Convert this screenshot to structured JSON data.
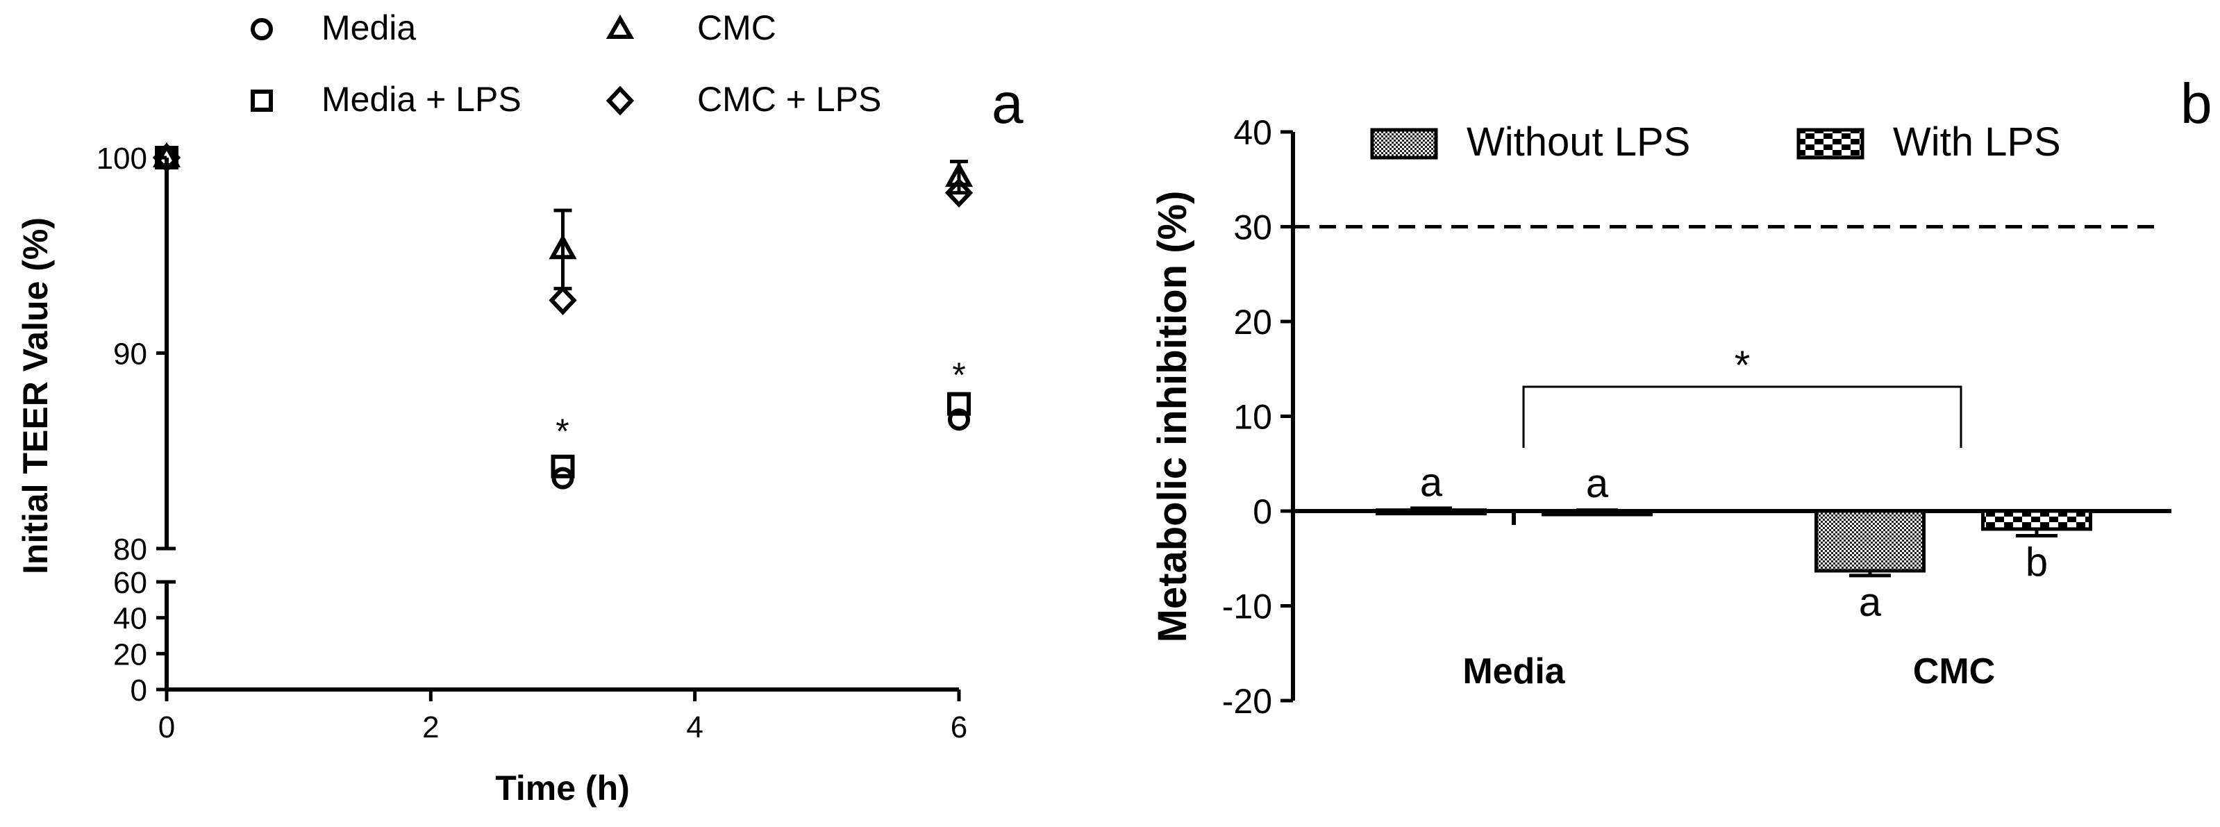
{
  "panel_a": {
    "label": "a",
    "xlabel": "Time (h)",
    "ylabel": "Initial TEER Value (%)",
    "x_ticks": [
      "0",
      "2",
      "4",
      "6"
    ],
    "y_ticks_upper": [
      "80",
      "90",
      "100"
    ],
    "y_ticks_lower": [
      "0",
      "20",
      "40",
      "60"
    ],
    "legend": [
      {
        "marker": "circle",
        "label": "Media"
      },
      {
        "marker": "triangle",
        "label": "CMC"
      },
      {
        "marker": "square",
        "label": "Media + LPS"
      },
      {
        "marker": "diamond",
        "label": "CMC + LPS"
      }
    ],
    "annotations": [
      {
        "text": "*",
        "x": 3,
        "y": 85.5
      },
      {
        "text": "*",
        "x": 6,
        "y": 88.5
      }
    ]
  },
  "panel_b": {
    "label": "b",
    "ylabel": "Metabolic inhibition (%)",
    "y_ticks": [
      "-20",
      "-10",
      "0",
      "10",
      "20",
      "30",
      "40"
    ],
    "groups": [
      "Media",
      "CMC"
    ],
    "legend": [
      {
        "pattern": "fine-checker",
        "label": "Without LPS"
      },
      {
        "pattern": "coarse-checker",
        "label": "With LPS"
      }
    ],
    "bracket_label": "*",
    "threshold": 30
  },
  "chart_data": [
    {
      "type": "scatter",
      "title": "",
      "xlabel": "Time (h)",
      "ylabel": "Initial TEER Value (%)",
      "xlim": [
        0,
        6
      ],
      "ylim_break": {
        "lower": [
          0,
          60
        ],
        "upper": [
          80,
          100
        ]
      },
      "grid": false,
      "legend_position": "top",
      "series": [
        {
          "name": "Media",
          "marker": "circle",
          "x": [
            0,
            3,
            6
          ],
          "y": [
            100,
            83.6,
            86.6
          ]
        },
        {
          "name": "Media + LPS",
          "marker": "square",
          "x": [
            0,
            3,
            6
          ],
          "y": [
            100,
            84.2,
            87.4
          ]
        },
        {
          "name": "CMC",
          "marker": "triangle",
          "x": [
            0,
            3,
            6
          ],
          "y": [
            100,
            95.3,
            99.0
          ],
          "error": [
            0,
            2.0,
            0.8
          ]
        },
        {
          "name": "CMC + LPS",
          "marker": "diamond",
          "x": [
            0,
            3,
            6
          ],
          "y": [
            100,
            92.7,
            98.2
          ]
        }
      ]
    },
    {
      "type": "bar",
      "title": "",
      "xlabel": "",
      "ylabel": "Metabolic inhibition (%)",
      "ylim": [
        -20,
        40
      ],
      "grid": false,
      "legend_position": "top",
      "categories": [
        "Media",
        "CMC"
      ],
      "series": [
        {
          "name": "Without LPS",
          "values": [
            0.1,
            -6.3
          ],
          "error": [
            0.2,
            0.5
          ],
          "labels": [
            "a",
            "a"
          ]
        },
        {
          "name": "With LPS",
          "values": [
            0.0,
            -1.9
          ],
          "error": [
            0.1,
            0.7
          ],
          "labels": [
            "a",
            "b"
          ]
        }
      ],
      "reference_line": 30
    }
  ]
}
